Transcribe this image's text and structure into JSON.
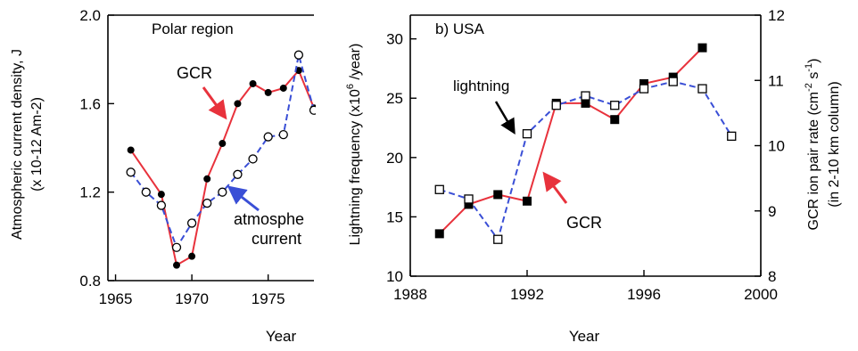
{
  "chart_data": [
    {
      "type": "line",
      "panel_label": "Polar region",
      "ylabel": "Atmospheric current density, J",
      "ylabel_units": "(x 10-12 Am-2)",
      "xlabel": "Year",
      "xlim": [
        1964.5,
        1978
      ],
      "ylim": [
        0.8,
        2.0
      ],
      "xticks": [
        1965,
        1970,
        1975
      ],
      "xtick_labels": [
        "1965",
        "1970",
        "1975"
      ],
      "yticks": [
        0.8,
        1.2,
        1.6,
        2.0
      ],
      "ytick_labels": [
        "0.8",
        "1.2",
        "1.6",
        "2.0"
      ],
      "series": [
        {
          "name": "GCR",
          "color": "#e8323c",
          "style": "solid",
          "marker": "filled-circle",
          "x": [
            1966,
            1968,
            1969,
            1970,
            1971,
            1972,
            1973,
            1974,
            1975,
            1976,
            1977,
            1978
          ],
          "y": [
            1.39,
            1.19,
            0.87,
            0.91,
            1.26,
            1.42,
            1.6,
            1.69,
            1.65,
            1.67,
            1.75,
            1.58
          ]
        },
        {
          "name": "atmospheric current",
          "color": "#3a4fd6",
          "style": "dashed",
          "marker": "open-circle",
          "x": [
            1966,
            1967,
            1968,
            1969,
            1970,
            1971,
            1972,
            1973,
            1974,
            1975,
            1976,
            1977,
            1978
          ],
          "y": [
            1.29,
            1.2,
            1.14,
            0.95,
            1.06,
            1.15,
            1.2,
            1.28,
            1.35,
            1.45,
            1.46,
            1.82,
            1.57
          ]
        }
      ],
      "annotations": [
        {
          "text": "GCR",
          "color": "#000000",
          "arrow_color": "#e8323c"
        },
        {
          "text": "atmosphe",
          "color": "#000000",
          "arrow_color": "#3a4fd6"
        },
        {
          "text": "current",
          "color": "#000000"
        }
      ]
    },
    {
      "type": "line",
      "panel_label": "b) USA",
      "ylabel": "Lightning frequency (x10",
      "ylabel_sup": "6",
      "ylabel_tail": " /year)",
      "y2label": "GCR ion pair rate (cm",
      "y2label_sup1": "-2",
      "y2label_mid": " s",
      "y2label_sup2": "-1",
      "y2label_tail": ")",
      "y2label_line2": "(in 2-10 km column)",
      "xlabel": "Year",
      "xlim": [
        1988,
        2000
      ],
      "ylim": [
        10,
        32
      ],
      "y2lim": [
        8,
        12
      ],
      "xticks": [
        1988,
        1992,
        1996,
        2000
      ],
      "xtick_labels": [
        "1988",
        "1992",
        "1996",
        "2000"
      ],
      "yticks": [
        10,
        15,
        20,
        25,
        30
      ],
      "ytick_labels": [
        "10",
        "15",
        "20",
        "25",
        "30"
      ],
      "y2ticks": [
        8,
        9,
        10,
        11,
        12
      ],
      "y2tick_labels": [
        "8",
        "9",
        "10",
        "11",
        "12"
      ],
      "series": [
        {
          "name": "GCR",
          "axis": "right",
          "color": "#e8323c",
          "style": "solid",
          "marker": "filled-square",
          "x": [
            1989,
            1990,
            1991,
            1992,
            1993,
            1994,
            1995,
            1996,
            1997,
            1998
          ],
          "y": [
            8.65,
            9.1,
            9.25,
            9.15,
            10.65,
            10.65,
            10.4,
            10.95,
            11.05,
            11.5
          ]
        },
        {
          "name": "lightning",
          "axis": "left",
          "color": "#3a4fd6",
          "style": "dashed",
          "marker": "open-square",
          "x": [
            1989,
            1990,
            1991,
            1992,
            1993,
            1994,
            1995,
            1996,
            1997,
            1998,
            1999
          ],
          "y": [
            17.3,
            16.5,
            13.1,
            22.0,
            24.4,
            25.2,
            24.4,
            25.8,
            26.4,
            25.8,
            21.8
          ]
        }
      ],
      "annotations": [
        {
          "text": "lightning",
          "color": "#000000",
          "arrow_color": "#000000"
        },
        {
          "text": "GCR",
          "color": "#000000",
          "arrow_color": "#e8323c"
        }
      ]
    }
  ]
}
